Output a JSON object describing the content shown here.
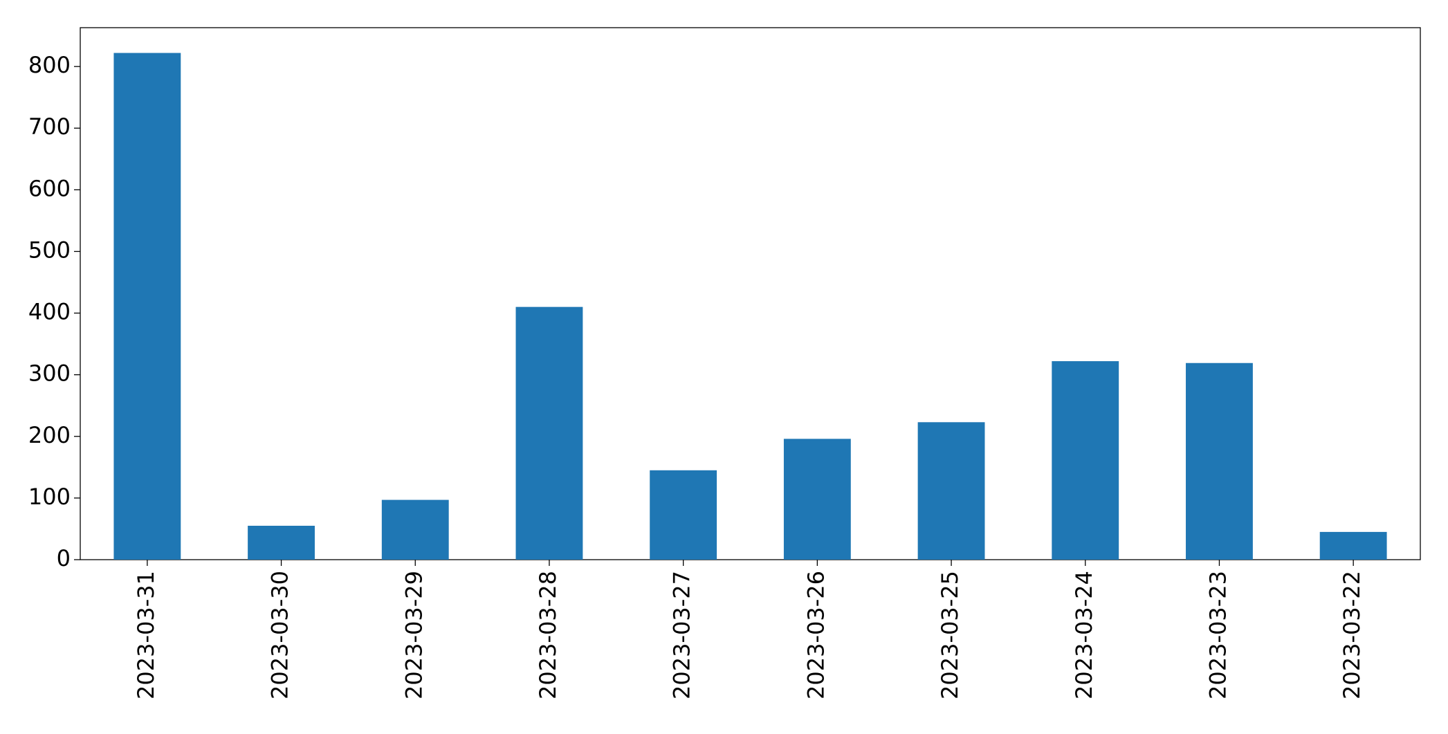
{
  "chart_data": {
    "type": "bar",
    "categories": [
      "2023-03-31",
      "2023-03-30",
      "2023-03-29",
      "2023-03-28",
      "2023-03-27",
      "2023-03-26",
      "2023-03-25",
      "2023-03-24",
      "2023-03-23",
      "2023-03-22"
    ],
    "values": [
      822,
      55,
      97,
      410,
      145,
      196,
      223,
      322,
      319,
      45
    ],
    "color": "#1f77b4",
    "ylim": [
      0,
      863
    ],
    "yticks": [
      0,
      100,
      200,
      300,
      400,
      500,
      600,
      700,
      800
    ],
    "grid": false
  }
}
